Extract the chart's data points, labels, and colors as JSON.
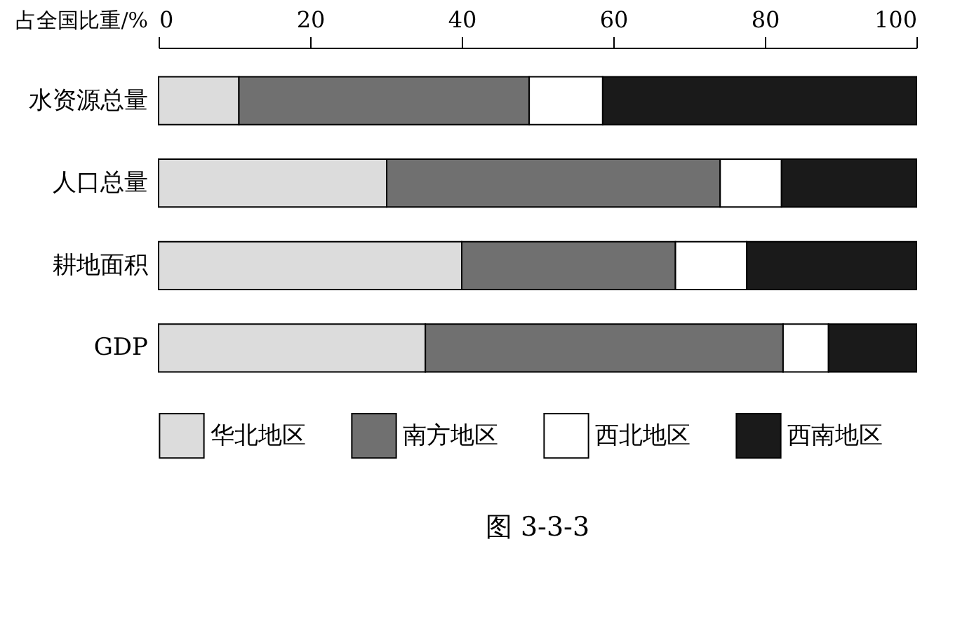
{
  "chart_data": {
    "type": "bar",
    "orientation": "horizontal",
    "stacked": true,
    "xlabel": "占全国比重/%",
    "categories": [
      "水资源总量",
      "人口总量",
      "耕地面积",
      "GDP"
    ],
    "series": [
      {
        "name": "华北地区",
        "color": "#dcdcdc",
        "values": [
          10.6,
          30.1,
          40,
          35.2
        ]
      },
      {
        "name": "南方地区",
        "color": "#707070",
        "values": [
          38.3,
          44,
          28.2,
          47.2
        ]
      },
      {
        "name": "西北地区",
        "color": "#ffffff",
        "values": [
          9.7,
          8.1,
          9.4,
          6
        ]
      },
      {
        "name": "西南地区",
        "color": "#1a1a1a",
        "values": [
          41.4,
          17.8,
          22.4,
          11.6
        ]
      }
    ],
    "xlim": [
      0,
      100
    ],
    "xticks": [
      0,
      20,
      40,
      60,
      80,
      100
    ],
    "grid": false,
    "legend": "bottom",
    "annotations": [
      "图 3-3-3"
    ]
  }
}
